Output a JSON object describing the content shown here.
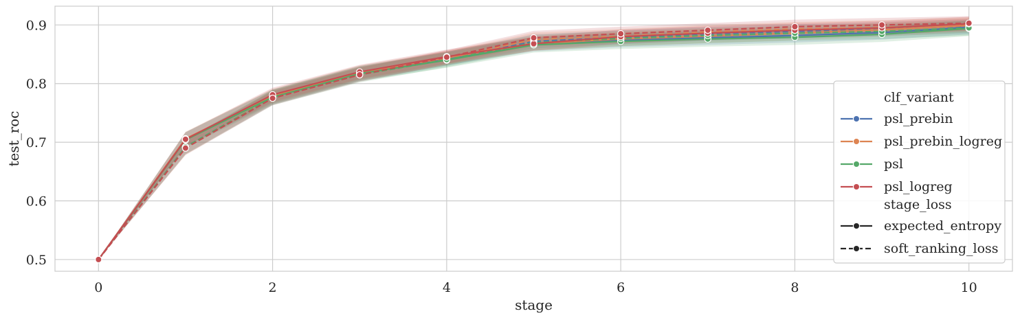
{
  "chart_data": {
    "type": "line",
    "xlabel": "stage",
    "ylabel": "test_roc",
    "xlim": [
      -0.5,
      10.5
    ],
    "ylim": [
      0.48,
      0.932
    ],
    "x_ticks": [
      0,
      2,
      4,
      6,
      8,
      10
    ],
    "y_ticks": [
      0.5,
      0.6,
      0.7,
      0.8,
      0.9
    ],
    "grid": true,
    "legend_position": "lower-right",
    "x": [
      0,
      1,
      2,
      3,
      4,
      5,
      6,
      7,
      8,
      9,
      10
    ],
    "hue_title": "clf_variant",
    "style_title": "stage_loss",
    "hue_entries": [
      {
        "name": "psl_prebin",
        "color": "#4c72b0"
      },
      {
        "name": "psl_prebin_logreg",
        "color": "#dd8452"
      },
      {
        "name": "psl",
        "color": "#55a868"
      },
      {
        "name": "psl_logreg",
        "color": "#c44e52"
      }
    ],
    "style_entries": [
      {
        "name": "expected_entropy",
        "dash": "solid"
      },
      {
        "name": "soft_ranking_loss",
        "dash": "dashed"
      }
    ],
    "series": [
      {
        "hue": "psl_prebin",
        "style": "expected_entropy",
        "color": "#4c72b0",
        "values": [
          0.5,
          0.705,
          0.778,
          0.818,
          0.843,
          0.867,
          0.874,
          0.878,
          0.882,
          0.887,
          0.896
        ],
        "band": 0.012
      },
      {
        "hue": "psl_prebin",
        "style": "soft_ranking_loss",
        "color": "#4c72b0",
        "values": [
          0.5,
          0.692,
          0.776,
          0.816,
          0.842,
          0.872,
          0.879,
          0.885,
          0.889,
          0.893,
          0.898
        ],
        "band": 0.012
      },
      {
        "hue": "psl_prebin_logreg",
        "style": "expected_entropy",
        "color": "#dd8452",
        "values": [
          0.5,
          0.706,
          0.779,
          0.819,
          0.844,
          0.868,
          0.876,
          0.881,
          0.886,
          0.892,
          0.899
        ],
        "band": 0.012
      },
      {
        "hue": "psl_prebin_logreg",
        "style": "soft_ranking_loss",
        "color": "#dd8452",
        "values": [
          0.5,
          0.691,
          0.777,
          0.817,
          0.843,
          0.875,
          0.881,
          0.888,
          0.893,
          0.896,
          0.901
        ],
        "band": 0.012
      },
      {
        "hue": "psl",
        "style": "expected_entropy",
        "color": "#55a868",
        "values": [
          0.5,
          0.704,
          0.777,
          0.817,
          0.84,
          0.866,
          0.872,
          0.876,
          0.879,
          0.884,
          0.894
        ],
        "band": 0.013
      },
      {
        "hue": "psl",
        "style": "soft_ranking_loss",
        "color": "#55a868",
        "values": [
          0.5,
          0.692,
          0.776,
          0.815,
          0.841,
          0.87,
          0.877,
          0.882,
          0.886,
          0.889,
          0.895
        ],
        "band": 0.013
      },
      {
        "hue": "psl_logreg",
        "style": "expected_entropy",
        "color": "#c44e52",
        "values": [
          0.5,
          0.705,
          0.781,
          0.82,
          0.846,
          0.868,
          0.88,
          0.886,
          0.891,
          0.895,
          0.902
        ],
        "band": 0.012
      },
      {
        "hue": "psl_logreg",
        "style": "soft_ranking_loss",
        "color": "#c44e52",
        "values": [
          0.5,
          0.69,
          0.775,
          0.815,
          0.845,
          0.878,
          0.885,
          0.891,
          0.897,
          0.9,
          0.903
        ],
        "band": 0.012
      }
    ]
  }
}
